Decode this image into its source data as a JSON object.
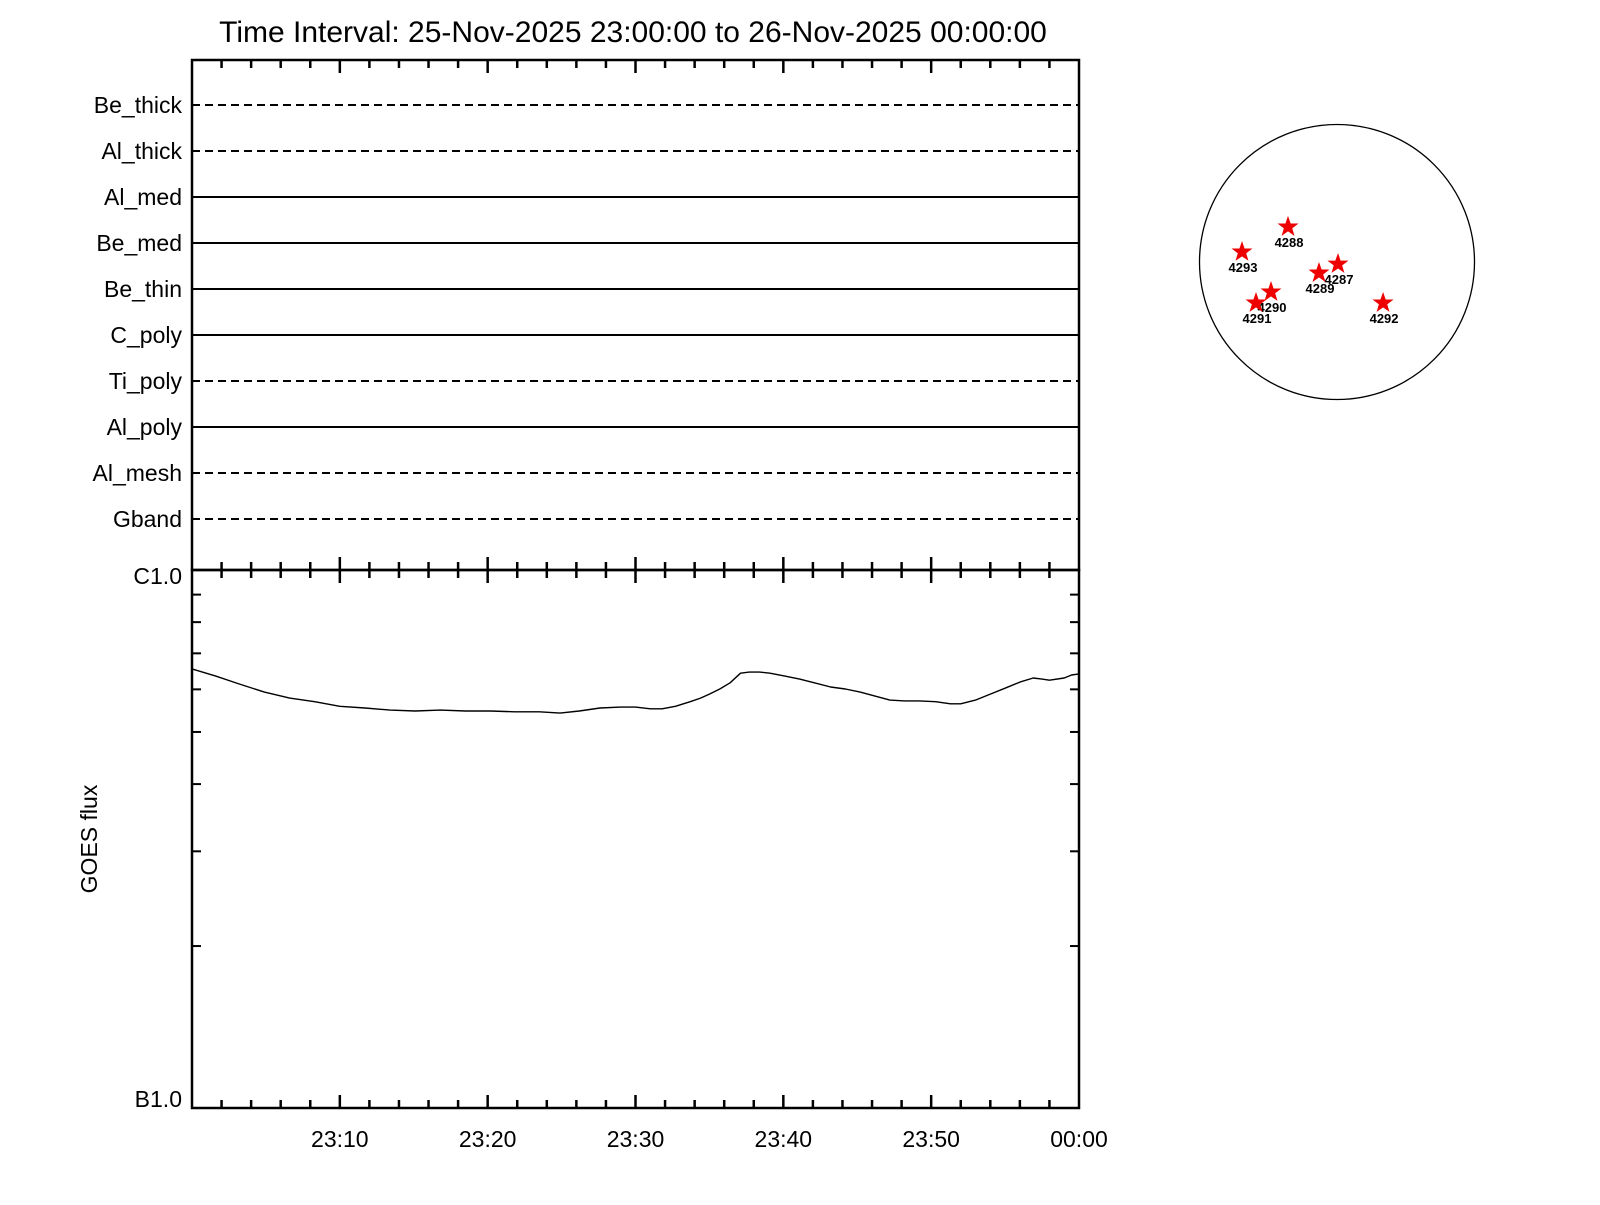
{
  "title": "Time Interval: 25-Nov-2025 23:00:00 to 26-Nov-2025 00:00:00",
  "colors": {
    "foreground": "#000000",
    "background": "#ffffff",
    "active_region_star": "#ee0000"
  },
  "chart_data": {
    "type": "line",
    "title": "Time Interval: 25-Nov-2025 23:00:00 to 26-Nov-2025 00:00:00",
    "x_axis": {
      "range_minutes": [
        0,
        60
      ],
      "start_time": "25-Nov-2025 23:00:00",
      "end_time": "26-Nov-2025 00:00:00",
      "minor_tick_step_minutes": 2,
      "major_ticks": [
        {
          "minutes": 10,
          "label": "23:10"
        },
        {
          "minutes": 20,
          "label": "23:20"
        },
        {
          "minutes": 30,
          "label": "23:30"
        },
        {
          "minutes": 40,
          "label": "23:40"
        },
        {
          "minutes": 50,
          "label": "23:50"
        },
        {
          "minutes": 60,
          "label": "00:00"
        }
      ]
    },
    "filter_panel": {
      "rows": [
        {
          "name": "Be_thick",
          "line_style": "dashed"
        },
        {
          "name": "Al_thick",
          "line_style": "dashed"
        },
        {
          "name": "Al_med",
          "line_style": "solid"
        },
        {
          "name": "Be_med",
          "line_style": "solid"
        },
        {
          "name": "Be_thin",
          "line_style": "solid"
        },
        {
          "name": "C_poly",
          "line_style": "solid"
        },
        {
          "name": "Ti_poly",
          "line_style": "dashed"
        },
        {
          "name": "Al_poly",
          "line_style": "solid"
        },
        {
          "name": "Al_mesh",
          "line_style": "dashed"
        },
        {
          "name": "Gband",
          "line_style": "dashed"
        }
      ]
    },
    "goes_panel": {
      "ylabel": "GOES flux",
      "y_scale": "log",
      "y_top_label": "C1.0",
      "y_bottom_label": "B1.0",
      "y_range_b_units": [
        1,
        10
      ],
      "series": [
        {
          "name": "GOES flux",
          "units": "flux in B-class units (B1.0 = 1, C1.0 = 10), time in minutes after 23:00",
          "points": [
            [
              0,
              6.55
            ],
            [
              1.6,
              6.35
            ],
            [
              3.2,
              6.14
            ],
            [
              4.9,
              5.93
            ],
            [
              6.6,
              5.78
            ],
            [
              8.3,
              5.69
            ],
            [
              10,
              5.58
            ],
            [
              11.7,
              5.54
            ],
            [
              13.4,
              5.49
            ],
            [
              15.1,
              5.47
            ],
            [
              16.8,
              5.49
            ],
            [
              18.5,
              5.47
            ],
            [
              20.2,
              5.47
            ],
            [
              21.8,
              5.45
            ],
            [
              23.5,
              5.45
            ],
            [
              24.9,
              5.42
            ],
            [
              26.2,
              5.47
            ],
            [
              27.6,
              5.54
            ],
            [
              29,
              5.56
            ],
            [
              30,
              5.56
            ],
            [
              31,
              5.52
            ],
            [
              31.8,
              5.52
            ],
            [
              32.7,
              5.58
            ],
            [
              33.7,
              5.69
            ],
            [
              34.4,
              5.78
            ],
            [
              35,
              5.88
            ],
            [
              35.7,
              6.01
            ],
            [
              36.4,
              6.17
            ],
            [
              37.1,
              6.43
            ],
            [
              37.7,
              6.46
            ],
            [
              38.4,
              6.46
            ],
            [
              39.1,
              6.43
            ],
            [
              40.1,
              6.35
            ],
            [
              41.1,
              6.27
            ],
            [
              42.1,
              6.17
            ],
            [
              43.2,
              6.06
            ],
            [
              44.2,
              6.01
            ],
            [
              45.2,
              5.93
            ],
            [
              46.2,
              5.83
            ],
            [
              47.2,
              5.73
            ],
            [
              48.2,
              5.71
            ],
            [
              49.2,
              5.71
            ],
            [
              50.3,
              5.69
            ],
            [
              51.3,
              5.64
            ],
            [
              52,
              5.64
            ],
            [
              53,
              5.73
            ],
            [
              54,
              5.88
            ],
            [
              55,
              6.03
            ],
            [
              56,
              6.19
            ],
            [
              56.9,
              6.3
            ],
            [
              57.5,
              6.27
            ],
            [
              58,
              6.24
            ],
            [
              59,
              6.3
            ],
            [
              59.5,
              6.38
            ],
            [
              60,
              6.41
            ]
          ]
        }
      ]
    },
    "sun_map": {
      "description": "Solar disk with active-region star markers",
      "marker": "star",
      "active_regions": [
        {
          "label": "4288",
          "x_r": -0.356,
          "y_r": -0.255
        },
        {
          "label": "4293",
          "x_r": -0.691,
          "y_r": -0.073
        },
        {
          "label": "4287",
          "x_r": 0.007,
          "y_r": 0.015
        },
        {
          "label": "4289",
          "x_r": -0.131,
          "y_r": 0.08
        },
        {
          "label": "4290",
          "x_r": -0.48,
          "y_r": 0.218
        },
        {
          "label": "4291",
          "x_r": -0.589,
          "y_r": 0.298
        },
        {
          "label": "4292",
          "x_r": 0.335,
          "y_r": 0.298
        }
      ]
    }
  }
}
